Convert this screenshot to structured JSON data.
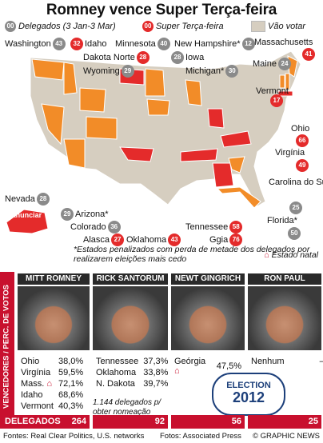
{
  "title": "Romney vence Super Terça-feira",
  "legend": {
    "delegates_badge": "00",
    "delegates_label": "Delegados (3 Jan-3 Mar)",
    "super_badge": "00",
    "super_label": "Super Terça-feira",
    "not_voting_label": "Vão votar"
  },
  "colors": {
    "romney": "#f28c28",
    "santorum": "#e42b2b",
    "gingrich": "#e42b2b",
    "not_yet": "#d6cec0",
    "accent_red": "#c8102e"
  },
  "states": [
    {
      "name": "Washington",
      "delegates": "43",
      "badge": "grey"
    },
    {
      "name": "Idaho",
      "delegates": "32",
      "badge": "red"
    },
    {
      "name": "Minnesota",
      "delegates": "40",
      "badge": "grey"
    },
    {
      "name": "New Hampshire*",
      "delegates": "12",
      "badge": "grey"
    },
    {
      "name": "Massachusetts",
      "delegates": "41",
      "badge": "red"
    },
    {
      "name": "Dakota Norte",
      "delegates": "28",
      "badge": "red"
    },
    {
      "name": "Iowa",
      "delegates": "28",
      "badge": "grey"
    },
    {
      "name": "Maine",
      "delegates": "24",
      "badge": "grey"
    },
    {
      "name": "Wyoming",
      "delegates": "29",
      "badge": "grey"
    },
    {
      "name": "Michigan*",
      "delegates": "30",
      "badge": "grey"
    },
    {
      "name": "Vermont",
      "delegates": "17",
      "badge": "red"
    },
    {
      "name": "Ohio",
      "delegates": "66",
      "badge": "red"
    },
    {
      "name": "Virgínia",
      "delegates": "49",
      "badge": "red"
    },
    {
      "name": "Nevada",
      "delegates": "28",
      "badge": "grey"
    },
    {
      "name": "Carolina do Sul*",
      "delegates": "25",
      "badge": "grey"
    },
    {
      "name": "Arizona*",
      "delegates": "29",
      "badge": "grey"
    },
    {
      "name": "Colorado",
      "delegates": "36",
      "badge": "grey"
    },
    {
      "name": "Tennessee",
      "delegates": "58",
      "badge": "red"
    },
    {
      "name": "Florida*",
      "delegates": "50",
      "badge": "grey"
    },
    {
      "name": "Alasca",
      "delegates": "27",
      "badge": "red"
    },
    {
      "name": "Oklahoma",
      "delegates": "43",
      "badge": "red"
    },
    {
      "name": "Ggia",
      "delegates": "76",
      "badge": "red"
    }
  ],
  "alaska_note": "A anunciar",
  "notes": {
    "penalized": "*Estados penalizados com perda de metade dos delegados por realizarem eleições mais cedo",
    "home_state": "Estado natal"
  },
  "side_label": "VENCEDORES / PERC. DE VOTOS",
  "candidates": [
    {
      "name": "MITT ROMNEY",
      "results": [
        [
          "Ohio",
          "38,0%"
        ],
        [
          "Virgínia",
          "59,5%"
        ],
        [
          "Mass.",
          "72,1%"
        ],
        [
          "Idaho",
          "68,6%"
        ],
        [
          "Vermont",
          "40,3%"
        ]
      ],
      "delegates": "264"
    },
    {
      "name": "RICK SANTORUM",
      "results": [
        [
          "Tennessee",
          "37,3%"
        ],
        [
          "Oklahoma",
          "33,8%"
        ],
        [
          "N. Dakota",
          "39,7%"
        ]
      ],
      "delegates": "92"
    },
    {
      "name": "NEWT GINGRICH",
      "results": [
        [
          "Geórgia",
          "47,5%"
        ]
      ],
      "delegates": "56"
    },
    {
      "name": "RON PAUL",
      "results": [
        [
          "Nenhum",
          "–"
        ]
      ],
      "delegates": "25"
    }
  ],
  "needed": "1.144 delegados p/ obter nomeação",
  "delegates_label": "DELEGADOS",
  "stamp": {
    "line1": "ELECTION",
    "line2": "2012"
  },
  "footer": {
    "left": "Fontes: Real Clear Politics, U.S. networks",
    "middle": "Fotos: Associated Press",
    "right": "© GRAPHIC NEWS"
  }
}
